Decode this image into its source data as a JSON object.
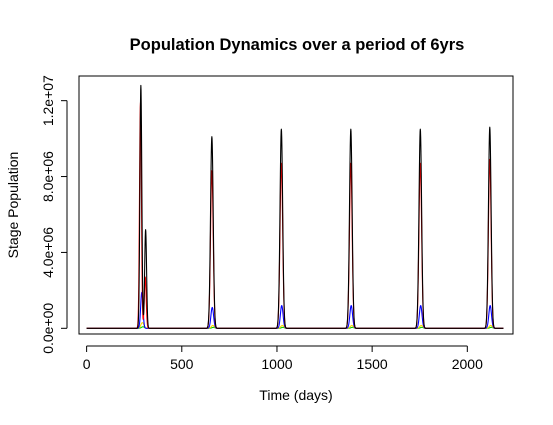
{
  "chart_data": {
    "type": "line",
    "title": "Population Dynamics over a period of 6yrs",
    "xlabel": "Time (days)",
    "ylabel": "Stage Population",
    "xlim": [
      -40,
      2240
    ],
    "ylim": [
      -300000,
      13300000
    ],
    "x_ticks": [
      0,
      500,
      1000,
      1500,
      2000
    ],
    "x_tick_labels": [
      "0",
      "500",
      "1000",
      "1500",
      "2000"
    ],
    "y_ticks": [
      0,
      4000000,
      8000000,
      12000000
    ],
    "y_tick_labels": [
      "0.0e+00",
      "4.0e+06",
      "8.0e+06",
      "1.2e+07"
    ],
    "x_range": [
      0,
      2190
    ],
    "grid": false,
    "legend": "none",
    "series": [
      {
        "color": "#000000",
        "peaks": [
          {
            "x": 285,
            "y": 12800000,
            "width": 5
          },
          {
            "x": 310,
            "y": 5200000,
            "width": 5
          },
          {
            "x": 658,
            "y": 10100000,
            "width": 7
          },
          {
            "x": 1023,
            "y": 10500000,
            "width": 7
          },
          {
            "x": 1388,
            "y": 10500000,
            "width": 7
          },
          {
            "x": 1753,
            "y": 10500000,
            "width": 7
          },
          {
            "x": 2118,
            "y": 10600000,
            "width": 7
          }
        ]
      },
      {
        "color": "#ff0000",
        "peaks": [
          {
            "x": 283,
            "y": 11900000,
            "width": 5
          },
          {
            "x": 308,
            "y": 2700000,
            "width": 5
          },
          {
            "x": 658,
            "y": 8300000,
            "width": 7
          },
          {
            "x": 1023,
            "y": 8700000,
            "width": 7
          },
          {
            "x": 1388,
            "y": 8700000,
            "width": 7
          },
          {
            "x": 1753,
            "y": 8700000,
            "width": 7
          },
          {
            "x": 2118,
            "y": 8900000,
            "width": 7
          }
        ]
      },
      {
        "color": "#0000ff",
        "peaks": [
          {
            "x": 290,
            "y": 1900000,
            "width": 6
          },
          {
            "x": 660,
            "y": 1100000,
            "width": 7
          },
          {
            "x": 1025,
            "y": 1200000,
            "width": 7
          },
          {
            "x": 1390,
            "y": 1200000,
            "width": 7
          },
          {
            "x": 1755,
            "y": 1200000,
            "width": 7
          },
          {
            "x": 2120,
            "y": 1200000,
            "width": 7
          }
        ]
      },
      {
        "color": "#ffd700",
        "peaks": [
          {
            "x": 293,
            "y": 300000,
            "width": 8
          },
          {
            "x": 663,
            "y": 150000,
            "width": 8
          },
          {
            "x": 1028,
            "y": 150000,
            "width": 8
          },
          {
            "x": 1393,
            "y": 150000,
            "width": 8
          },
          {
            "x": 1758,
            "y": 150000,
            "width": 8
          },
          {
            "x": 2123,
            "y": 150000,
            "width": 8
          }
        ]
      },
      {
        "color": "#00cd00",
        "peaks": [
          {
            "x": 296,
            "y": 80000,
            "width": 8
          },
          {
            "x": 666,
            "y": 50000,
            "width": 8
          },
          {
            "x": 1031,
            "y": 50000,
            "width": 8
          },
          {
            "x": 1396,
            "y": 50000,
            "width": 8
          },
          {
            "x": 1761,
            "y": 50000,
            "width": 8
          },
          {
            "x": 2126,
            "y": 50000,
            "width": 8
          }
        ]
      }
    ]
  }
}
